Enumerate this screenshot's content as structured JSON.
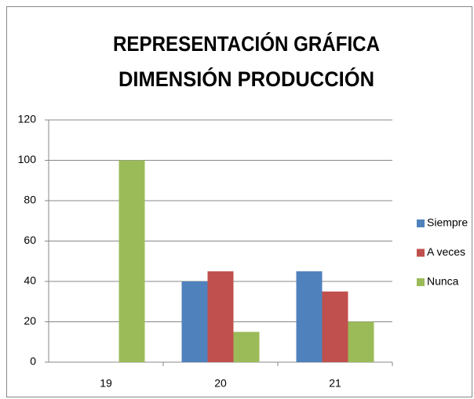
{
  "chart_data": {
    "type": "bar",
    "title": [
      "REPRESENTACIÓN GRÁFICA",
      "DIMENSIÓN PRODUCCIÓN"
    ],
    "categories": [
      "19",
      "20",
      "21"
    ],
    "series": [
      {
        "name": "Siempre",
        "color": "#4f81bd",
        "values": [
          0,
          40,
          45
        ]
      },
      {
        "name": "A veces",
        "color": "#c0504d",
        "values": [
          0,
          45,
          35
        ]
      },
      {
        "name": "Nunca",
        "color": "#9bbb59",
        "values": [
          100,
          15,
          20
        ]
      }
    ],
    "ylim": [
      0,
      120
    ],
    "yticks": [
      0,
      20,
      40,
      60,
      80,
      100,
      120
    ],
    "grid": true,
    "legend": "right"
  }
}
